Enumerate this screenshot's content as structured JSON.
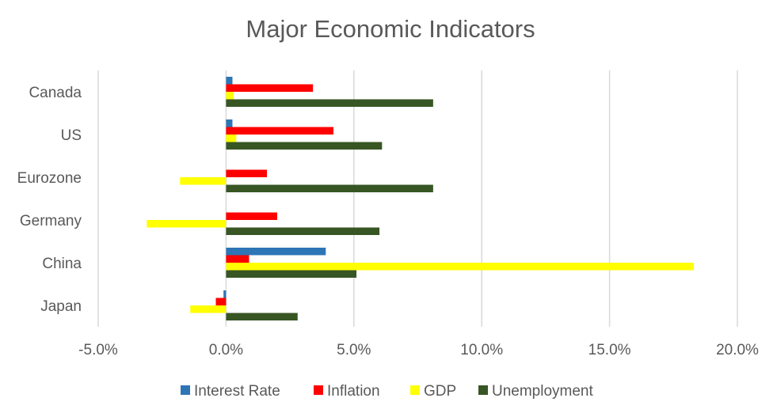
{
  "chart_data": {
    "type": "bar",
    "orientation": "horizontal",
    "title": "Major Economic Indicators",
    "xlabel": "",
    "ylabel": "",
    "categories": [
      "Canada",
      "US",
      "Eurozone",
      "Germany",
      "China",
      "Japan"
    ],
    "series": [
      {
        "name": "Interest Rate",
        "color": "#2e75b6",
        "values": [
          0.25,
          0.25,
          0.0,
          0.0,
          3.9,
          -0.1
        ]
      },
      {
        "name": "Inflation",
        "color": "#ff0000",
        "values": [
          3.4,
          4.2,
          1.6,
          2.0,
          0.9,
          -0.4
        ]
      },
      {
        "name": "GDP",
        "color": "#ffff00",
        "values": [
          0.3,
          0.4,
          -1.8,
          -3.1,
          18.3,
          -1.4
        ]
      },
      {
        "name": "Unemployment",
        "color": "#375623",
        "values": [
          8.1,
          6.1,
          8.1,
          6.0,
          5.1,
          2.8
        ]
      }
    ],
    "xlim": [
      -5,
      20
    ],
    "xticks": [
      -5,
      0,
      5,
      10,
      15,
      20
    ],
    "xtick_labels": [
      "-5.0%",
      "0.0%",
      "5.0%",
      "10.0%",
      "15.0%",
      "20.0%"
    ],
    "grid": "vertical",
    "legend_position": "bottom"
  }
}
